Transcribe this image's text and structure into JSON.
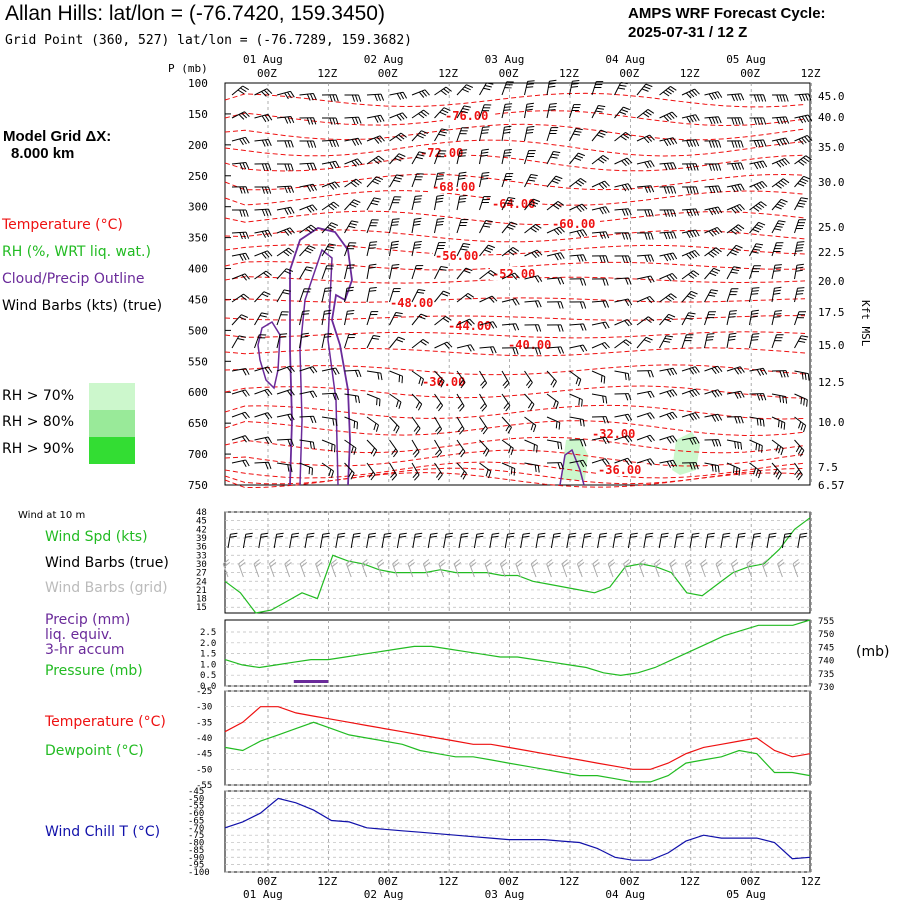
{
  "header": {
    "title": "Allan Hills:  lat/lon = (-76.7420, 159.3450)",
    "grid_point": "Grid Point (360, 527) lat/lon = (-76.7289, 159.3682)",
    "cycle_line1": "AMPS WRF Forecast Cycle:",
    "cycle_line2": "2025-07-31 / 12  Z"
  },
  "legend": {
    "model_grid_line1": "Model Grid ΔX:",
    "model_grid_line2": "8.000 km",
    "temperature": "Temperature (°C)",
    "rh": "RH (%, WRT liq. wat.)",
    "cloud": "Cloud/Precip Outline",
    "wind_barbs": "Wind Barbs (kts) (true)",
    "rh70": "RH > 70%",
    "rh80": "RH > 80%",
    "rh90": "RH > 90%",
    "rh_colors": [
      "#ccf7cc",
      "#99ea99",
      "#33dd33"
    ],
    "p_axis_label": "P (mb)",
    "kft_label": "Kft MSL",
    "wind10m": "Wind at 10 m",
    "wind_spd": "Wind Spd (kts)",
    "wind_barbs_true": "Wind Barbs (true)",
    "wind_barbs_grid": "Wind Barbs (grid)",
    "precip_1": "Precip (mm)",
    "precip_2": "liq. equiv.",
    "precip_3": "3-hr accum",
    "pressure": "Pressure (mb)",
    "pressure_unit": "(mb)",
    "temp_series": "Temperature (°C)",
    "dew_series": "Dewpoint (°C)",
    "windchill": "Wind Chill T (°C)"
  },
  "colors": {
    "temperature": "#ee1111",
    "dewpoint": "#22bb22",
    "windchill": "#1111aa",
    "cloud": "#6a2a9a",
    "wind_true": "#000000",
    "wind_grid": "#aaaaaa"
  },
  "chart_data": [
    {
      "type": "line",
      "title": "Time-height cross section",
      "x": [
        "00Z",
        "12Z",
        "00Z",
        "12Z",
        "00Z",
        "12Z",
        "00Z",
        "12Z",
        "00Z",
        "12Z"
      ],
      "top_date_labels": [
        "01 Aug",
        "02 Aug",
        "03 Aug",
        "04 Aug",
        "05 Aug"
      ],
      "y_pressure_ticks": [
        100,
        150,
        200,
        250,
        300,
        350,
        400,
        450,
        500,
        550,
        600,
        650,
        700,
        750
      ],
      "y_height_ticks": [
        "45.0",
        "40.0",
        "35.0",
        "30.0",
        "25.0",
        "22.5",
        "20.0",
        "17.5",
        "15.0",
        "12.5",
        "10.0",
        "7.5",
        "6.57"
      ],
      "temperature_contour_labels": [
        "-76.00",
        "-72.00",
        "-68.00",
        "-64.00",
        "-60.00",
        "-56.00",
        "-52.00",
        "-48.00",
        "-44.00",
        "-40.00",
        "-36.00",
        "-32.00",
        "-36.00"
      ],
      "xlabel": "",
      "ylabel": "P (mb)"
    },
    {
      "type": "line",
      "title": "Wind at 10 m",
      "series": [
        {
          "name": "Wind Spd (kts)",
          "values": [
            24,
            20,
            13,
            14,
            17,
            20,
            18,
            33,
            31,
            30,
            28,
            27,
            27,
            27,
            28,
            27,
            27,
            27,
            26,
            26,
            24,
            23,
            22,
            21,
            20,
            22,
            29,
            30,
            29,
            27,
            20,
            19,
            23,
            27,
            29,
            30,
            35,
            42,
            46
          ]
        }
      ],
      "yticks": [
        48,
        45,
        42,
        39,
        36,
        33,
        30,
        27,
        24,
        21,
        18,
        15
      ],
      "ylim": [
        13,
        48
      ]
    },
    {
      "type": "line",
      "title": "Precip / Pressure",
      "series": [
        {
          "name": "Pressure (mb)",
          "values": [
            740,
            738,
            737,
            738,
            739,
            740,
            740,
            741,
            742,
            743,
            744,
            745,
            745,
            744,
            743,
            742,
            741,
            741,
            740,
            739,
            738,
            737,
            735,
            734,
            735,
            737,
            740,
            743,
            746,
            749,
            751,
            753,
            753,
            753,
            755
          ]
        },
        {
          "name": "Precip (mm)",
          "values": [
            0,
            0,
            0,
            0,
            0.05,
            0.05,
            0,
            0,
            0,
            0,
            0,
            0,
            0,
            0,
            0,
            0,
            0,
            0,
            0,
            0,
            0,
            0,
            0,
            0,
            0,
            0,
            0,
            0,
            0,
            0,
            0,
            0,
            0,
            0,
            0
          ]
        }
      ],
      "y_left_ticks": [
        "2.5",
        "2.0",
        "1.5",
        "1.0",
        "0.5",
        "0.0"
      ],
      "y_right_ticks": [
        755,
        750,
        745,
        740,
        735,
        730
      ]
    },
    {
      "type": "line",
      "title": "Temperature / Dewpoint",
      "series": [
        {
          "name": "Temperature (°C)",
          "values": [
            -38,
            -35,
            -30,
            -30,
            -32,
            -33,
            -34,
            -35,
            -36,
            -37,
            -38,
            -39,
            -40,
            -41,
            -42,
            -42,
            -43,
            -44,
            -45,
            -46,
            -47,
            -48,
            -49,
            -50,
            -50,
            -48,
            -45,
            -43,
            -42,
            -41,
            -40,
            -44,
            -46,
            -45
          ]
        },
        {
          "name": "Dewpoint (°C)",
          "values": [
            -43,
            -44,
            -41,
            -39,
            -37,
            -35,
            -37,
            -39,
            -40,
            -41,
            -42,
            -44,
            -45,
            -46,
            -46,
            -47,
            -48,
            -49,
            -50,
            -51,
            -52,
            -52,
            -53,
            -54,
            -54,
            -52,
            -48,
            -47,
            -46,
            -44,
            -45,
            -51,
            -51,
            -52
          ]
        }
      ],
      "yticks": [
        -25,
        -30,
        -35,
        -40,
        -45,
        -50,
        -55
      ],
      "ylim": [
        -55,
        -25
      ]
    },
    {
      "type": "line",
      "title": "Wind Chill",
      "series": [
        {
          "name": "Wind Chill T (°C)",
          "values": [
            -70,
            -66,
            -60,
            -50,
            -53,
            -58,
            -65,
            -66,
            -70,
            -71,
            -72,
            -73,
            -74,
            -75,
            -76,
            -77,
            -78,
            -78,
            -78,
            -79,
            -80,
            -84,
            -90,
            -92,
            -92,
            -87,
            -79,
            -75,
            -77,
            -77,
            -77,
            -80,
            -91,
            -90
          ]
        }
      ],
      "yticks": [
        -45,
        -50,
        -55,
        -60,
        -65,
        -70,
        -75,
        -80,
        -85,
        -90,
        -95,
        -100
      ],
      "ylim": [
        -100,
        -45
      ]
    }
  ],
  "bottom_time_labels": [
    "00Z",
    "12Z",
    "00Z",
    "12Z",
    "00Z",
    "12Z",
    "00Z",
    "12Z",
    "00Z",
    "12Z"
  ],
  "bottom_date_labels": [
    "01 Aug",
    "02 Aug",
    "03 Aug",
    "04 Aug",
    "05 Aug"
  ]
}
